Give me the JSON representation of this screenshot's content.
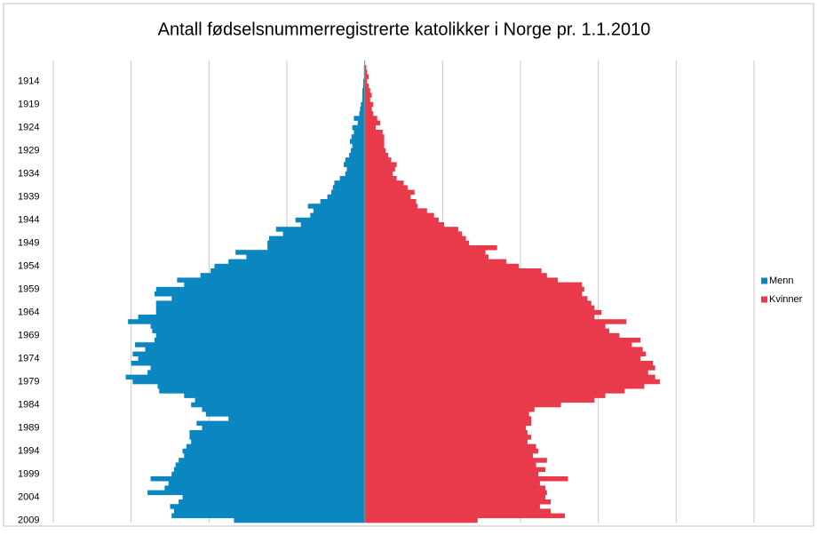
{
  "chart_data": {
    "type": "pyramid",
    "title": "Antall fødselsnummerregistrerte katolikker i Norge pr. 1.1.2010",
    "categories": [
      null,
      null,
      null,
      null,
      "1914",
      null,
      null,
      null,
      null,
      "1919",
      null,
      null,
      null,
      null,
      "1924",
      null,
      null,
      null,
      null,
      "1929",
      null,
      null,
      null,
      null,
      "1934",
      null,
      null,
      null,
      null,
      "1939",
      null,
      null,
      null,
      null,
      "1944",
      null,
      null,
      null,
      null,
      "1949",
      null,
      null,
      null,
      null,
      "1954",
      null,
      null,
      null,
      null,
      "1959",
      null,
      null,
      null,
      null,
      "1964",
      null,
      null,
      null,
      null,
      "1969",
      null,
      null,
      null,
      null,
      "1974",
      null,
      null,
      null,
      null,
      "1979",
      null,
      null,
      null,
      null,
      "1984",
      null,
      null,
      null,
      null,
      "1989",
      null,
      null,
      null,
      null,
      "1994",
      null,
      null,
      null,
      null,
      "1999",
      null,
      null,
      null,
      null,
      "2004",
      null,
      null,
      null,
      null,
      "2009"
    ],
    "series": [
      {
        "name": "Menn",
        "color": "#0a86c0",
        "side": "left",
        "values": [
          0,
          1,
          1,
          1,
          2,
          2,
          3,
          3,
          3,
          5,
          6,
          7,
          14,
          9,
          16,
          14,
          17,
          19,
          16,
          18,
          20,
          25,
          27,
          23,
          25,
          32,
          39,
          41,
          43,
          48,
          57,
          73,
          66,
          70,
          89,
          82,
          114,
          105,
          123,
          125,
          125,
          166,
          152,
          175,
          193,
          198,
          211,
          241,
          232,
          268,
          270,
          248,
          268,
          268,
          268,
          291,
          304,
          275,
          273,
          268,
          270,
          295,
          282,
          298,
          291,
          300,
          275,
          279,
          307,
          298,
          266,
          264,
          232,
          218,
          223,
          209,
          204,
          175,
          216,
          209,
          225,
          225,
          223,
          229,
          234,
          232,
          239,
          243,
          245,
          248,
          275,
          252,
          257,
          279,
          234,
          239,
          250,
          245,
          248,
          168
        ]
      },
      {
        "name": "Kvinner",
        "color": "#e83a4a",
        "side": "right",
        "values": [
          0,
          2,
          3,
          5,
          3,
          5,
          7,
          9,
          7,
          11,
          9,
          11,
          16,
          20,
          14,
          23,
          25,
          25,
          25,
          27,
          30,
          34,
          41,
          39,
          36,
          41,
          50,
          55,
          64,
          59,
          66,
          68,
          80,
          89,
          95,
          102,
          120,
          125,
          130,
          134,
          170,
          155,
          159,
          182,
          198,
          227,
          234,
          248,
          279,
          282,
          279,
          286,
          291,
          295,
          304,
          295,
          336,
          309,
          314,
          327,
          354,
          343,
          357,
          361,
          354,
          370,
          373,
          364,
          373,
          379,
          359,
          334,
          309,
          295,
          252,
          218,
          211,
          214,
          214,
          207,
          209,
          214,
          209,
          220,
          223,
          216,
          234,
          220,
          232,
          223,
          261,
          225,
          232,
          234,
          232,
          239,
          225,
          239,
          257,
          145
        ]
      }
    ],
    "xlim": [
      -400,
      500
    ],
    "xticks": [
      -400,
      -300,
      -200,
      -100,
      0,
      100,
      200,
      300,
      400,
      500
    ],
    "grid": true,
    "legend": "right"
  }
}
